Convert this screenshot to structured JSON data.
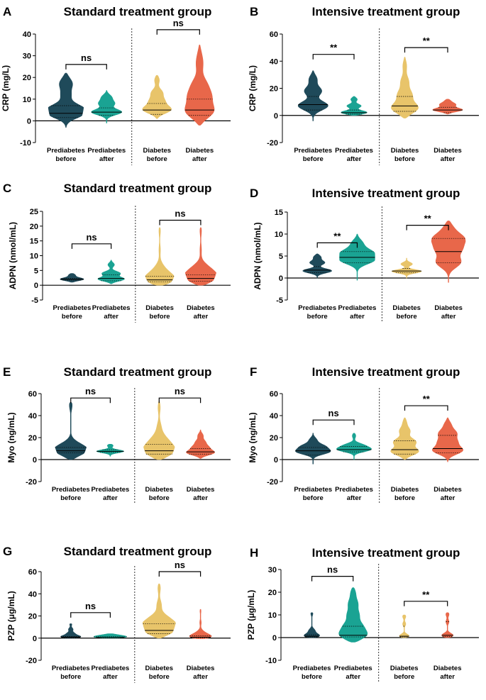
{
  "figure": {
    "background": "#ffffff",
    "colors": {
      "prediabetes_before": "#1f4a5a",
      "prediabetes_after": "#1aa393",
      "diabetes_before": "#e8c46a",
      "diabetes_after": "#e8674a",
      "outline": "#000000"
    }
  },
  "chart_data": [
    {
      "panel": "A",
      "title": "Standard treatment group",
      "type": "violin",
      "ylabel": "CRP (mg/L)",
      "ylim": [
        -10,
        40
      ],
      "yticks": [
        -10,
        0,
        10,
        20,
        30,
        40
      ],
      "categories": [
        [
          "Prediabetes",
          "before"
        ],
        [
          "Prediabetes",
          "after"
        ],
        [
          "Diabetes",
          "before"
        ],
        [
          "Diabetes",
          "after"
        ]
      ],
      "violins": [
        {
          "min": -3,
          "max": 22,
          "median": 3.5,
          "q1": 1.5,
          "q3": 7,
          "peaks": [
            [
              3,
              1
            ],
            [
              6,
              0.8
            ],
            [
              12,
              0.3
            ],
            [
              17,
              0.4
            ],
            [
              20,
              0.15
            ]
          ]
        },
        {
          "min": -1,
          "max": 14,
          "median": 4,
          "q1": 2.5,
          "q3": 6,
          "peaks": [
            [
              4,
              1
            ],
            [
              8,
              0.5
            ],
            [
              11,
              0.35
            ]
          ]
        },
        {
          "min": 1,
          "max": 21,
          "median": 5,
          "q1": 3,
          "q3": 8,
          "peaks": [
            [
              5,
              1
            ],
            [
              9,
              0.45
            ],
            [
              13,
              0.35
            ],
            [
              19,
              0.2
            ]
          ]
        },
        {
          "min": -2,
          "max": 35,
          "median": 5,
          "q1": 2.5,
          "q3": 10,
          "peaks": [
            [
              4,
              1
            ],
            [
              11,
              0.65
            ],
            [
              17,
              0.4
            ],
            [
              26,
              0.2
            ],
            [
              31,
              0.12
            ]
          ]
        }
      ],
      "comparisons": [
        {
          "from": 0,
          "to": 1,
          "label": "ns",
          "y": 26
        },
        {
          "from": 2,
          "to": 3,
          "label": "ns",
          "y": 42
        }
      ]
    },
    {
      "panel": "B",
      "title": "Intensive treatment group",
      "type": "violin",
      "ylabel": "CRP (mg/L)",
      "ylim": [
        -20,
        60
      ],
      "yticks": [
        -20,
        0,
        20,
        40,
        60
      ],
      "categories": [
        [
          "Prediabetes",
          "before"
        ],
        [
          "Prediabetes",
          "after"
        ],
        [
          "Diabetes",
          "before"
        ],
        [
          "Diabetes",
          "after"
        ]
      ],
      "violins": [
        {
          "min": -4,
          "max": 33,
          "median": 8,
          "q1": 4,
          "q3": 14,
          "peaks": [
            [
              7,
              1
            ],
            [
              18,
              0.55
            ],
            [
              27,
              0.3
            ]
          ]
        },
        {
          "min": 0,
          "max": 14,
          "median": 2,
          "q1": 1,
          "q3": 4,
          "peaks": [
            [
              2,
              1
            ],
            [
              7,
              0.45
            ],
            [
              12,
              0.25
            ]
          ]
        },
        {
          "min": -2,
          "max": 43,
          "median": 7,
          "q1": 3,
          "q3": 14,
          "peaks": [
            [
              5,
              1
            ],
            [
              15,
              0.45
            ],
            [
              25,
              0.25
            ],
            [
              37,
              0.15
            ]
          ]
        },
        {
          "min": 1,
          "max": 12,
          "median": 4,
          "q1": 2,
          "q3": 6,
          "peaks": [
            [
              4,
              1
            ],
            [
              8,
              0.5
            ],
            [
              11,
              0.2
            ]
          ]
        }
      ],
      "comparisons": [
        {
          "from": 0,
          "to": 1,
          "label": "**",
          "y": 45
        },
        {
          "from": 2,
          "to": 3,
          "label": "**",
          "y": 50
        }
      ]
    },
    {
      "panel": "C",
      "title": "Standard treatment group",
      "type": "violin",
      "ylabel": "ADPN (nmol/mL)",
      "ylim": [
        -5,
        25
      ],
      "yticks": [
        -5,
        0,
        5,
        10,
        15,
        20,
        25
      ],
      "categories": [
        [
          "Prediabetes",
          "before"
        ],
        [
          "Prediabetes",
          "after"
        ],
        [
          "Diabetes",
          "before"
        ],
        [
          "Diabetes",
          "after"
        ]
      ],
      "violins": [
        {
          "min": 1,
          "max": 4,
          "median": 2,
          "q1": 1.7,
          "q3": 2.3,
          "peaks": [
            [
              2,
              0.8
            ],
            [
              3.5,
              0.25
            ]
          ]
        },
        {
          "min": 0.5,
          "max": 8.5,
          "median": 2.3,
          "q1": 1.5,
          "q3": 3.5,
          "peaks": [
            [
              2,
              1
            ],
            [
              4,
              0.6
            ],
            [
              7,
              0.25
            ]
          ]
        },
        {
          "min": 0,
          "max": 19.5,
          "median": 1.8,
          "q1": 1.2,
          "q3": 3,
          "peaks": [
            [
              1.5,
              1
            ],
            [
              3.5,
              0.45
            ],
            [
              6,
              0.2
            ],
            [
              12,
              0.05
            ],
            [
              19,
              0.08
            ]
          ]
        },
        {
          "min": 0,
          "max": 19.5,
          "median": 2.3,
          "q1": 1.4,
          "q3": 3.5,
          "peaks": [
            [
              2,
              1
            ],
            [
              4,
              0.5
            ],
            [
              6,
              0.35
            ],
            [
              12,
              0.05
            ],
            [
              19,
              0.08
            ]
          ]
        }
      ],
      "comparisons": [
        {
          "from": 0,
          "to": 1,
          "label": "ns",
          "y": 14
        },
        {
          "from": 2,
          "to": 3,
          "label": "ns",
          "y": 22
        }
      ]
    },
    {
      "panel": "D",
      "title": "Intensive treatment group",
      "type": "violin",
      "ylabel": "ADPN (nmol/mL)",
      "ylim": [
        -5,
        15
      ],
      "yticks": [
        -5,
        0,
        5,
        10,
        15
      ],
      "categories": [
        [
          "Prediabetes",
          "before"
        ],
        [
          "Prediabetes",
          "after"
        ],
        [
          "Diabetes",
          "before"
        ],
        [
          "Diabetes",
          "after"
        ]
      ],
      "violins": [
        {
          "min": 0,
          "max": 5.5,
          "median": 1.8,
          "q1": 1.2,
          "q3": 2.6,
          "peaks": [
            [
              1.6,
              1
            ],
            [
              3.5,
              0.5
            ],
            [
              4.8,
              0.3
            ]
          ]
        },
        {
          "min": -0.5,
          "max": 10,
          "median": 4.7,
          "q1": 3.5,
          "q3": 6,
          "peaks": [
            [
              4,
              1
            ],
            [
              5.8,
              0.95
            ],
            [
              8,
              0.4
            ]
          ]
        },
        {
          "min": 0,
          "max": 4.5,
          "median": 1.6,
          "q1": 1.2,
          "q3": 2.2,
          "peaks": [
            [
              1.5,
              1
            ],
            [
              3.2,
              0.4
            ]
          ]
        },
        {
          "min": -1,
          "max": 13,
          "median": 6,
          "q1": 3.5,
          "q3": 9,
          "peaks": [
            [
              3.5,
              0.8
            ],
            [
              6.5,
              0.75
            ],
            [
              9,
              1
            ],
            [
              11.5,
              0.35
            ]
          ]
        }
      ],
      "comparisons": [
        {
          "from": 0,
          "to": 1,
          "label": "**",
          "y": 8
        },
        {
          "from": 2,
          "to": 3,
          "label": "**",
          "y": 12
        }
      ]
    },
    {
      "panel": "E",
      "title": "Standard treatment group",
      "type": "violin",
      "ylabel": "Myo (ng/mL)",
      "ylim": [
        -20,
        60
      ],
      "yticks": [
        -20,
        0,
        20,
        40,
        60
      ],
      "categories": [
        [
          "Prediabetes",
          "before"
        ],
        [
          "Prediabetes",
          "after"
        ],
        [
          "Diabetes",
          "before"
        ],
        [
          "Diabetes",
          "after"
        ]
      ],
      "violins": [
        {
          "min": 0,
          "max": 52,
          "median": 8,
          "q1": 6,
          "q3": 11,
          "peaks": [
            [
              7,
              1
            ],
            [
              12,
              0.5
            ],
            [
              51,
              0.15
            ]
          ]
        },
        {
          "min": 3,
          "max": 14,
          "median": 7.5,
          "q1": 6.5,
          "q3": 9,
          "peaks": [
            [
              7.5,
              0.9
            ],
            [
              13,
              0.25
            ]
          ]
        },
        {
          "min": 0,
          "max": 53,
          "median": 8,
          "q1": 5,
          "q3": 14,
          "peaks": [
            [
              6,
              1
            ],
            [
              13,
              0.6
            ],
            [
              20,
              0.3
            ],
            [
              30,
              0.12
            ],
            [
              48,
              0.1
            ]
          ]
        },
        {
          "min": 1,
          "max": 27,
          "median": 7,
          "q1": 5,
          "q3": 10,
          "peaks": [
            [
              6,
              1
            ],
            [
              11,
              0.5
            ],
            [
              16,
              0.3
            ],
            [
              22,
              0.2
            ]
          ]
        }
      ],
      "comparisons": [
        {
          "from": 0,
          "to": 1,
          "label": "ns",
          "y": 56
        },
        {
          "from": 2,
          "to": 3,
          "label": "ns",
          "y": 56
        }
      ]
    },
    {
      "panel": "F",
      "title": "Intensive treatment group",
      "type": "violin",
      "ylabel": "Myo (ng/mL)",
      "ylim": [
        -20,
        60
      ],
      "yticks": [
        -20,
        0,
        20,
        40,
        60
      ],
      "categories": [
        [
          "Prediabetes",
          "before"
        ],
        [
          "Prediabetes",
          "after"
        ],
        [
          "Diabetes",
          "before"
        ],
        [
          "Diabetes",
          "after"
        ]
      ],
      "violins": [
        {
          "min": -4,
          "max": 24,
          "median": 8,
          "q1": 4,
          "q3": 11,
          "peaks": [
            [
              7,
              1
            ],
            [
              12,
              0.7
            ],
            [
              18,
              0.25
            ]
          ]
        },
        {
          "min": 0,
          "max": 24,
          "median": 9,
          "q1": 7,
          "q3": 12,
          "peaks": [
            [
              9,
              1
            ],
            [
              13,
              0.55
            ],
            [
              22,
              0.15
            ]
          ]
        },
        {
          "min": 0,
          "max": 38,
          "median": 9,
          "q1": 5,
          "q3": 17,
          "peaks": [
            [
              7,
              1
            ],
            [
              16,
              0.7
            ],
            [
              26,
              0.35
            ],
            [
              34,
              0.15
            ]
          ]
        },
        {
          "min": -2,
          "max": 38,
          "median": 10,
          "q1": 6,
          "q3": 22,
          "peaks": [
            [
              8,
              1
            ],
            [
              16,
              0.55
            ],
            [
              24,
              0.55
            ],
            [
              32,
              0.25
            ]
          ]
        }
      ],
      "comparisons": [
        {
          "from": 0,
          "to": 1,
          "label": "ns",
          "y": 36
        },
        {
          "from": 2,
          "to": 3,
          "label": "**",
          "y": 49
        }
      ]
    },
    {
      "panel": "G",
      "title": "Standard treatment group",
      "type": "violin",
      "ylabel": "PZP (μg/mL)",
      "ylim": [
        -20,
        60
      ],
      "yticks": [
        -20,
        0,
        20,
        40,
        60
      ],
      "categories": [
        [
          "Prediabetes",
          "before"
        ],
        [
          "Prediabetes",
          "after"
        ],
        [
          "Diabetes",
          "before"
        ],
        [
          "Diabetes",
          "after"
        ]
      ],
      "violins": [
        {
          "min": 0,
          "max": 13,
          "median": 0.8,
          "q1": 0.3,
          "q3": 1.5,
          "peaks": [
            [
              0.8,
              0.9
            ],
            [
              4,
              0.25
            ],
            [
              8,
              0.15
            ],
            [
              13,
              0.12
            ]
          ]
        },
        {
          "min": 0,
          "max": 4,
          "median": 0.6,
          "q1": 0.3,
          "q3": 1.2,
          "peaks": [
            [
              0.6,
              0.95
            ],
            [
              2.5,
              0.4
            ]
          ]
        },
        {
          "min": 0,
          "max": 49,
          "median": 7,
          "q1": 4,
          "q3": 13,
          "peaks": [
            [
              6,
              1
            ],
            [
              12,
              0.75
            ],
            [
              18,
              0.45
            ],
            [
              30,
              0.15
            ],
            [
              46,
              0.12
            ]
          ]
        },
        {
          "min": -0.5,
          "max": 26,
          "median": 0.8,
          "q1": 0.3,
          "q3": 2,
          "peaks": [
            [
              0.8,
              1
            ],
            [
              5,
              0.2
            ],
            [
              14,
              0.05
            ],
            [
              25,
              0.05
            ]
          ]
        }
      ],
      "comparisons": [
        {
          "from": 0,
          "to": 1,
          "label": "ns",
          "y": 23
        },
        {
          "from": 2,
          "to": 3,
          "label": "ns",
          "y": 60
        }
      ]
    },
    {
      "panel": "H",
      "title": "Intensive treatment group",
      "type": "violin",
      "ylabel": "PZP (μg/mL)",
      "ylim": [
        -10,
        30
      ],
      "yticks": [
        -10,
        0,
        10,
        20,
        30
      ],
      "categories": [
        [
          "Prediabetes",
          "before"
        ],
        [
          "Prediabetes",
          "after"
        ],
        [
          "Diabetes",
          "before"
        ],
        [
          "Diabetes",
          "after"
        ]
      ],
      "violins": [
        {
          "min": 0,
          "max": 11,
          "median": 0.6,
          "q1": 0.3,
          "q3": 1.2,
          "peaks": [
            [
              0.6,
              0.7
            ],
            [
              3,
              0.2
            ],
            [
              11,
              0.12
            ]
          ]
        },
        {
          "min": -2,
          "max": 22,
          "median": 1,
          "q1": 0.3,
          "q3": 5,
          "peaks": [
            [
              0.8,
              1
            ],
            [
              5,
              0.55
            ],
            [
              10,
              0.35
            ],
            [
              15,
              0.3
            ],
            [
              20,
              0.2
            ]
          ]
        },
        {
          "min": 0,
          "max": 10,
          "median": 0.6,
          "q1": 0.3,
          "q3": 5,
          "peaks": [
            [
              0.5,
              0.45
            ],
            [
              6,
              0.1
            ],
            [
              9.5,
              0.15
            ]
          ]
        },
        {
          "min": 0,
          "max": 11,
          "median": 1,
          "q1": 0.5,
          "q3": 7,
          "peaks": [
            [
              0.8,
              0.5
            ],
            [
              7,
              0.1
            ],
            [
              10.5,
              0.15
            ]
          ]
        }
      ],
      "comparisons": [
        {
          "from": 0,
          "to": 1,
          "label": "ns",
          "y": 27
        },
        {
          "from": 2,
          "to": 3,
          "label": "**",
          "y": 16
        }
      ]
    }
  ]
}
